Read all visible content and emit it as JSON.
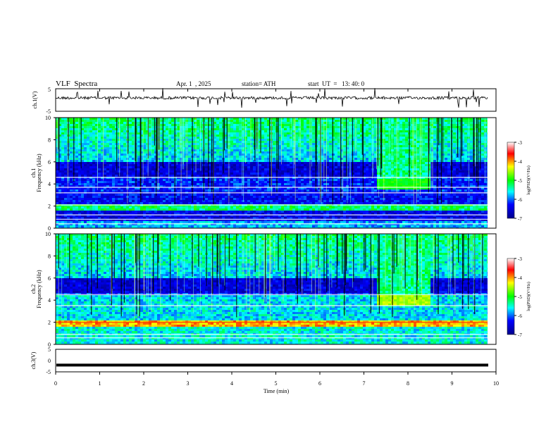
{
  "header": {
    "title": "VLF  Spectra",
    "date": "Apr. 1  , 2025",
    "station": "station= ATH",
    "start": "start  UT  =   13: 40: 0"
  },
  "chart_data": [
    {
      "type": "line",
      "ylabel": "ch.1(V)",
      "ylim": [
        -5,
        5
      ],
      "yticks": [
        "5",
        "-5"
      ],
      "xlim": [
        0,
        10
      ],
      "note": "noisy baseline trace near 0 V with spikes",
      "series": [
        {
          "baseline": 0
        }
      ]
    },
    {
      "type": "heatmap",
      "ylabel": "ch.1",
      "ylabel2": "Frequency  (kHz)",
      "ylim": [
        0,
        10
      ],
      "yticks": [
        "0",
        "2",
        "4",
        "6",
        "8",
        "10"
      ],
      "xlim": [
        0,
        9.8
      ],
      "colorbar": {
        "label": "log(PSD)(V²/Hz)",
        "ticks": [
          "-3",
          "-4",
          "-5",
          "-6",
          "-7"
        ],
        "range": [
          -7,
          -3
        ]
      },
      "features": {
        "band_7_to_8_5_min_khz": [
          3.6,
          4.6
        ]
      }
    },
    {
      "type": "heatmap",
      "ylabel": "ch.2",
      "ylabel2": "Frequency  (kHz)",
      "ylim": [
        0,
        10
      ],
      "yticks": [
        "0",
        "2",
        "4",
        "6",
        "8",
        "10"
      ],
      "xlim": [
        0,
        9.8
      ],
      "colorbar": {
        "label": "log(PSD)(V²/Hz)",
        "ticks": [
          "-3",
          "-4",
          "-5",
          "-6",
          "-7"
        ],
        "range": [
          -7,
          -3
        ]
      },
      "features": {
        "strong_line_khz": 2.0,
        "band_7_to_8_5_min_khz": [
          3.6,
          4.6
        ]
      }
    },
    {
      "type": "line",
      "ylabel": "ch.3(V)",
      "ylim": [
        -5,
        5
      ],
      "yticks": [
        "5",
        "0",
        "-5"
      ],
      "xlim": [
        0,
        10
      ],
      "xlabel": "Time  (min)",
      "xticks": [
        "0",
        "1",
        "2",
        "3",
        "4",
        "5",
        "6",
        "7",
        "8",
        "9",
        "10"
      ],
      "series": [
        {
          "baseline": -2
        }
      ]
    }
  ]
}
